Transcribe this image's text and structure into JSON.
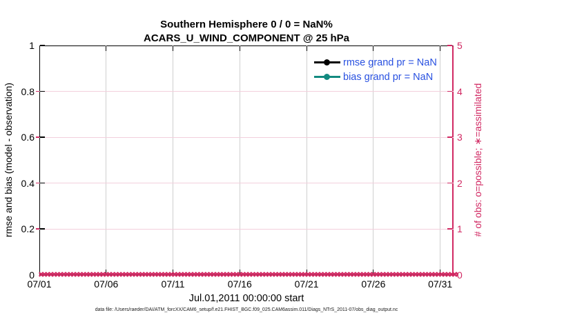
{
  "title": {
    "line1": "Southern Hemisphere 0 / 0 = NaN%",
    "line2": "ACARS_U_WIND_COMPONENT @ 25 hPa"
  },
  "legend": [
    {
      "label": "rmse grand pr = NaN",
      "color": "#000000"
    },
    {
      "label": "bias grand pr = NaN",
      "color": "#128a80"
    }
  ],
  "legend_text_color": "#2850e0",
  "footer": {
    "data_file": "data file: /Users/raeder/DAI/ATM_forcXX/CAM6_setup/f.e21.FHIST_BGC.f09_025.CAM6assim.011/Diags_NTrS_2011-07/obs_diag_output.nc"
  },
  "colors": {
    "obs_accent": "#d12862",
    "bias_teal": "#128a80",
    "legend_blue": "#2850e0",
    "grid_gray": "#cfcfcf",
    "grid_pink": "#f2cfdc"
  },
  "chart_data": {
    "type": "line",
    "title": "Southern Hemisphere 0 / 0 = NaN%",
    "subtitle": "ACARS_U_WIND_COMPONENT @ 25 hPa",
    "xlabel": "Jul.01,2011 00:00:00 start",
    "x_ticks": [
      "07/01",
      "07/06",
      "07/11",
      "07/16",
      "07/21",
      "07/26",
      "07/31"
    ],
    "x_tick_days": [
      1,
      6,
      11,
      16,
      21,
      26,
      31
    ],
    "x_range_days": [
      1,
      32
    ],
    "left_axis": {
      "label": "rmse and bias (model - observation)",
      "ticks": [
        0,
        0.2,
        0.4,
        0.6,
        0.8,
        1
      ],
      "range": [
        0,
        1
      ],
      "color": "#000000"
    },
    "right_axis": {
      "label": "# of obs: o=possible; ∗=assimilated",
      "ticks": [
        0,
        1,
        2,
        3,
        4,
        5
      ],
      "range": [
        0,
        5
      ],
      "color": "#d12862"
    },
    "grid": true,
    "legend_position": "top-right",
    "series": [
      {
        "name": "rmse grand pr = NaN",
        "type": "line",
        "color": "#000000",
        "values": []
      },
      {
        "name": "bias grand pr = NaN",
        "type": "line",
        "color": "#128a80",
        "values": []
      },
      {
        "name": "# of obs possible/assimilated",
        "type": "scatter",
        "axis": "right",
        "marker": "✖",
        "color": "#d12862",
        "y_value": 0,
        "points_per_day": 4,
        "n_points": 124
      }
    ]
  }
}
